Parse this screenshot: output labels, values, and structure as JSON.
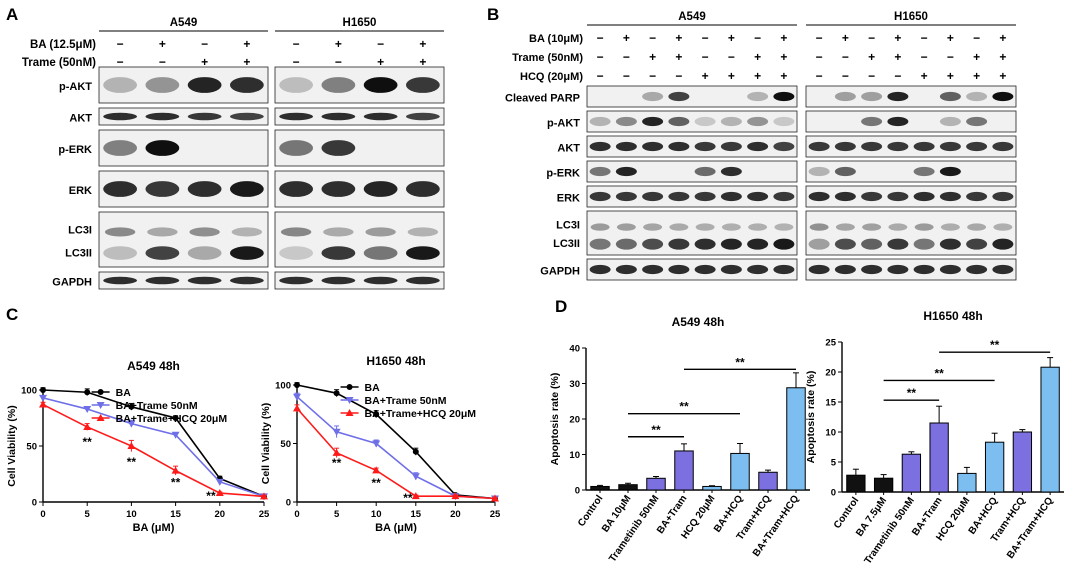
{
  "panel_a": {
    "letter": "A",
    "groups": [
      "A549",
      "H1650"
    ],
    "cond_labels": [
      "BA (12.5μM)",
      "Trame (50nM)"
    ],
    "conds": [
      [
        "−",
        "+",
        "−",
        "+"
      ],
      [
        "−",
        "−",
        "+",
        "+"
      ]
    ],
    "rows": [
      {
        "label": "p-AKT",
        "rows": 2,
        "blots": [
          [
            0.2,
            0.35,
            0.9,
            0.85
          ],
          [
            0.15,
            0.45,
            1.0,
            0.8
          ]
        ]
      },
      {
        "label": "AKT",
        "blots": [
          [
            0.85,
            0.85,
            0.8,
            0.75
          ],
          [
            0.85,
            0.85,
            0.85,
            0.75
          ]
        ]
      },
      {
        "label": "p-ERK",
        "rows": 2,
        "blots": [
          [
            0.45,
            1.0,
            0.0,
            0.0
          ],
          [
            0.5,
            0.8,
            0.0,
            0.0
          ]
        ]
      },
      {
        "label": "ERK",
        "rows": 2,
        "blots": [
          [
            0.85,
            0.8,
            0.85,
            0.95
          ],
          [
            0.85,
            0.85,
            0.9,
            0.85
          ]
        ]
      },
      {
        "label": "LC3I",
        "label2": "LC3II",
        "rows": 3,
        "blots": [
          [
            0.15,
            0.75,
            0.25,
            0.95
          ],
          [
            0.1,
            0.8,
            0.5,
            0.95
          ]
        ]
      },
      {
        "label": "GAPDH",
        "blots": [
          [
            0.85,
            0.85,
            0.85,
            0.85
          ],
          [
            0.85,
            0.85,
            0.85,
            0.85
          ]
        ]
      }
    ]
  },
  "panel_b": {
    "letter": "B",
    "groups": [
      "A549",
      "H1650"
    ],
    "cond_labels": [
      "BA (10μM)",
      "Trame (50nM)",
      "HCQ (20μM)"
    ],
    "conds": [
      [
        "−",
        "+",
        "−",
        "+",
        "−",
        "+",
        "−",
        "+"
      ],
      [
        "−",
        "−",
        "+",
        "+",
        "−",
        "−",
        "+",
        "+"
      ],
      [
        "−",
        "−",
        "−",
        "−",
        "+",
        "+",
        "+",
        "+"
      ]
    ],
    "rows": [
      {
        "label": "Cleaved PARP",
        "blots": [
          [
            0.0,
            0.0,
            0.25,
            0.75,
            0.0,
            0.0,
            0.2,
            1.0
          ],
          [
            0.0,
            0.3,
            0.3,
            0.9,
            0.0,
            0.6,
            0.2,
            1.0
          ]
        ]
      },
      {
        "label": "p-AKT",
        "blots": [
          [
            0.2,
            0.4,
            0.9,
            0.6,
            0.1,
            0.2,
            0.35,
            0.1
          ],
          [
            0.0,
            0.0,
            0.5,
            0.9,
            0.0,
            0.2,
            0.5,
            0.0
          ]
        ]
      },
      {
        "label": "AKT",
        "blots": [
          [
            0.85,
            0.85,
            0.85,
            0.85,
            0.8,
            0.8,
            0.85,
            0.75
          ],
          [
            0.8,
            0.8,
            0.8,
            0.8,
            0.8,
            0.8,
            0.8,
            0.8
          ]
        ]
      },
      {
        "label": "p-ERK",
        "blots": [
          [
            0.5,
            0.9,
            0.0,
            0.0,
            0.55,
            0.85,
            0.0,
            0.0
          ],
          [
            0.2,
            0.6,
            0.0,
            0.0,
            0.5,
            0.95,
            0.0,
            0.0
          ]
        ]
      },
      {
        "label": "ERK",
        "blots": [
          [
            0.8,
            0.8,
            0.8,
            0.8,
            0.8,
            0.85,
            0.85,
            0.8
          ],
          [
            0.85,
            0.85,
            0.8,
            0.8,
            0.85,
            0.85,
            0.8,
            0.8
          ]
        ]
      },
      {
        "label": "LC3I",
        "label2": "LC3II",
        "rows": 2,
        "blots": [
          [
            0.5,
            0.55,
            0.7,
            0.8,
            0.85,
            0.9,
            0.9,
            0.95
          ],
          [
            0.3,
            0.7,
            0.6,
            0.8,
            0.5,
            0.85,
            0.75,
            0.9
          ]
        ]
      },
      {
        "label": "GAPDH",
        "blots": [
          [
            0.85,
            0.85,
            0.85,
            0.85,
            0.85,
            0.85,
            0.85,
            0.85
          ],
          [
            0.85,
            0.85,
            0.85,
            0.85,
            0.85,
            0.85,
            0.85,
            0.85
          ]
        ]
      }
    ]
  },
  "panel_c": {
    "letter": "C"
  },
  "panel_d": {
    "letter": "D"
  },
  "colors": {
    "ba": "#000000",
    "trame": "#6f6fe8",
    "hcq": "#ff1a1a"
  },
  "chart_data": [
    {
      "type": "line",
      "title": "A549 48h",
      "xlabel": "BA (μM)",
      "ylabel": "Cell Viability (%)",
      "x": [
        0,
        5,
        10,
        15,
        20,
        25
      ],
      "xlim": [
        0,
        25
      ],
      "ylim": [
        0,
        100
      ],
      "yticks": [
        0,
        50,
        100
      ],
      "legend": "top-right",
      "series": [
        {
          "name": "BA",
          "marker": "circle",
          "color": "#000000",
          "values": [
            100,
            98,
            85,
            75,
            21,
            5
          ],
          "err": [
            2,
            3,
            3,
            2,
            2,
            1
          ]
        },
        {
          "name": "BA+Trame 50nM",
          "marker": "triangle-down",
          "color": "#6f6fe8",
          "values": [
            93,
            83,
            70,
            60,
            18,
            5
          ],
          "err": [
            2,
            2,
            3,
            2,
            2,
            1
          ]
        },
        {
          "name": "BA+Trame+HCQ 20μM",
          "marker": "triangle-up",
          "color": "#ff1a1a",
          "values": [
            87,
            67,
            50,
            28,
            8,
            5
          ],
          "err": [
            2,
            3,
            5,
            4,
            1,
            1
          ]
        }
      ],
      "annotations": [
        {
          "x": 5,
          "y": 50,
          "text": "**"
        },
        {
          "x": 10,
          "y": 32,
          "text": "**"
        },
        {
          "x": 15,
          "y": 14,
          "text": "**"
        },
        {
          "x": 19,
          "y": 2,
          "text": "**"
        }
      ]
    },
    {
      "type": "line",
      "title": "H1650 48h",
      "xlabel": "BA (μM)",
      "ylabel": "Cell Viability (%)",
      "x": [
        0,
        5,
        10,
        15,
        20,
        25
      ],
      "xlim": [
        0,
        25
      ],
      "ylim": [
        0,
        100
      ],
      "yticks": [
        0,
        50,
        100
      ],
      "legend": "top-right",
      "series": [
        {
          "name": "BA",
          "marker": "circle",
          "color": "#000000",
          "values": [
            100,
            93,
            75,
            43,
            6,
            3
          ],
          "err": [
            2,
            3,
            3,
            3,
            1,
            1
          ]
        },
        {
          "name": "BA+Trame 50nM",
          "marker": "triangle-down",
          "color": "#6f6fe8",
          "values": [
            90,
            60,
            50,
            22,
            5,
            3
          ],
          "err": [
            3,
            5,
            3,
            3,
            1,
            1
          ]
        },
        {
          "name": "BA+Trame+HCQ 20μM",
          "marker": "triangle-up",
          "color": "#ff1a1a",
          "values": [
            80,
            42,
            27,
            5,
            5,
            3
          ],
          "err": [
            3,
            4,
            2,
            1,
            1,
            1
          ]
        }
      ],
      "annotations": [
        {
          "x": 5,
          "y": 30,
          "text": "**"
        },
        {
          "x": 10,
          "y": 13,
          "text": "**"
        },
        {
          "x": 14,
          "y": 0,
          "text": "**"
        }
      ]
    },
    {
      "type": "bar",
      "title": "A549 48h",
      "ylabel": "Apoptosis rate (%)",
      "categories": [
        "Control",
        "BA 10μM",
        "Trametinib 50nM",
        "BA+Tram",
        "HCQ 20μM",
        "BA+HCQ",
        "Tram+HCQ",
        "BA+Tram+HCQ"
      ],
      "values": [
        1.0,
        1.5,
        3.3,
        11.0,
        1.0,
        10.3,
        5.0,
        28.8
      ],
      "err": [
        0.3,
        0.4,
        0.5,
        2.0,
        0.2,
        2.8,
        0.6,
        4.2
      ],
      "colors": [
        "#111111",
        "#111111",
        "#7c6fe0",
        "#7c6fe0",
        "#7cbef0",
        "#7cbef0",
        "#7c6fe0",
        "#7cbef0"
      ],
      "ylim": [
        0,
        40
      ],
      "yticks": [
        0,
        10,
        20,
        30,
        40
      ],
      "significance": [
        {
          "from": 1,
          "to": 3,
          "y": 15,
          "text": "**"
        },
        {
          "from": 1,
          "to": 5,
          "y": 21.5,
          "text": "**"
        },
        {
          "from": 3,
          "to": 7,
          "y": 34,
          "text": "**"
        }
      ]
    },
    {
      "type": "bar",
      "title": "H1650 48h",
      "ylabel": "Apoptosis rate (%)",
      "categories": [
        "Control",
        "BA 7.5μM",
        "Trametinib 50nM",
        "BA+Tram",
        "HCQ 20μM",
        "BA+HCQ",
        "Tram+HCQ",
        "BA+Tram+HCQ"
      ],
      "values": [
        2.8,
        2.3,
        6.3,
        11.5,
        3.1,
        8.3,
        10.0,
        20.8
      ],
      "err": [
        1.0,
        0.6,
        0.4,
        2.8,
        1.0,
        1.5,
        0.4,
        1.6
      ],
      "colors": [
        "#111111",
        "#111111",
        "#7c6fe0",
        "#7c6fe0",
        "#7cbef0",
        "#7cbef0",
        "#7c6fe0",
        "#7cbef0"
      ],
      "ylim": [
        0,
        25
      ],
      "yticks": [
        0,
        5,
        10,
        15,
        20,
        25
      ],
      "significance": [
        {
          "from": 1,
          "to": 3,
          "y": 15.3,
          "text": "**"
        },
        {
          "from": 1,
          "to": 5,
          "y": 18.6,
          "text": "**"
        },
        {
          "from": 3,
          "to": 7,
          "y": 23.3,
          "text": "**"
        }
      ]
    }
  ]
}
